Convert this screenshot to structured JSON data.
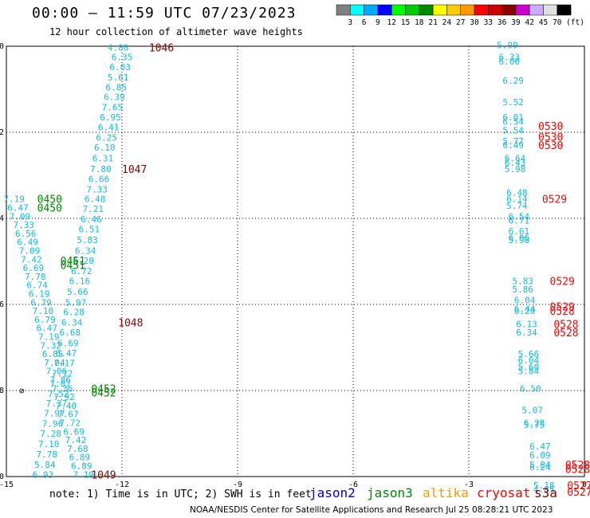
{
  "header": {
    "title": "00:00 – 11:59 UTC 07/23/2023",
    "subtitle": "12 hour collection of altimeter wave heights"
  },
  "scale": {
    "labels": [
      "3",
      "6",
      "9",
      "12",
      "15",
      "18",
      "21",
      "24",
      "27",
      "30",
      "33",
      "36",
      "39",
      "42",
      "45",
      "70"
    ],
    "unit": "(ft)",
    "colors": [
      "#808080",
      "#00ffff",
      "#00aaff",
      "#0000ff",
      "#00ff00",
      "#00cc00",
      "#008800",
      "#ffff00",
      "#ffcc00",
      "#ff9900",
      "#ff0000",
      "#cc0000",
      "#880000",
      "#cc00cc",
      "#ccaaff",
      "#e0e0e0",
      "#000000"
    ]
  },
  "map": {
    "lon_ticks": [
      "-15",
      "-12",
      "-9",
      "-6",
      "-3",
      "0"
    ],
    "lat_ticks": [
      "0",
      "-2",
      "-4",
      "-6",
      "-8",
      "-10"
    ],
    "lon_range": [
      -15,
      0
    ],
    "lat_range": [
      -10,
      0
    ],
    "marker_symbol": "⊘"
  },
  "colors": {
    "jason2": "#0000cc",
    "jason3": "#008800",
    "altika": "#ff9900",
    "cryosat": "#ff0000",
    "s3a": "#880000",
    "wave_label": "#11bbdd"
  },
  "footer": {
    "note": "note: 1) Time is in UTC; 2) SWH is in feet",
    "satellites": [
      {
        "name": "jason2",
        "color": "#0000cc"
      },
      {
        "name": "jason3",
        "color": "#008800"
      },
      {
        "name": "altika",
        "color": "#ff9900"
      },
      {
        "name": "cryosat",
        "color": "#ff0000"
      },
      {
        "name": "s3a",
        "color": "#880000"
      }
    ],
    "credit": "NOAA/NESDIS Center for Satellite Applications and Research   Jul 25 08:28:21 UTC 2023"
  },
  "tracks": [
    {
      "satellite": "s3a",
      "points": [
        [
          -12.1,
          -0.03,
          "4.86"
        ],
        [
          -12.0,
          -0.25,
          "6.35"
        ],
        [
          -12.05,
          -0.48,
          "6.03"
        ],
        [
          -12.1,
          -0.72,
          "5.61"
        ],
        [
          -12.15,
          -0.95,
          "6.85"
        ],
        [
          -12.2,
          -1.18,
          "6.39"
        ],
        [
          -12.25,
          -1.42,
          "7.65"
        ],
        [
          -12.3,
          -1.65,
          "6.95"
        ],
        [
          -12.35,
          -1.88,
          "6.41"
        ],
        [
          -12.4,
          -2.12,
          "6.25"
        ],
        [
          -12.45,
          -2.35,
          "6.10"
        ],
        [
          -12.5,
          -2.6,
          "6.31"
        ],
        [
          -12.55,
          -2.85,
          "7.80"
        ],
        [
          -12.6,
          -3.08,
          "6.66"
        ],
        [
          -12.65,
          -3.32,
          "7.33"
        ],
        [
          -12.7,
          -3.55,
          "6.48"
        ],
        [
          -12.75,
          -3.78,
          "7.21"
        ],
        [
          -12.8,
          -4.02,
          "6.46"
        ],
        [
          -12.85,
          -4.25,
          "6.51"
        ],
        [
          -12.9,
          -4.5,
          "5.83"
        ],
        [
          -12.95,
          -4.75,
          "6.34"
        ],
        [
          -13.0,
          -4.98,
          "6.20"
        ],
        [
          -13.05,
          -5.22,
          "6.72"
        ],
        [
          -13.1,
          -5.45,
          "6.16"
        ],
        [
          -13.15,
          -5.7,
          "5.66"
        ],
        [
          -13.2,
          -5.95,
          "5.97"
        ],
        [
          -13.25,
          -6.18,
          "6.28"
        ],
        [
          -13.3,
          -6.42,
          "6.34"
        ],
        [
          -13.35,
          -6.65,
          "6.68"
        ],
        [
          -13.4,
          -6.9,
          "6.69"
        ],
        [
          -13.45,
          -7.13,
          "6.47"
        ],
        [
          -13.5,
          -7.36,
          "7.17"
        ],
        [
          -13.55,
          -7.6,
          "7.12"
        ],
        [
          -13.6,
          -7.84,
          "7.07"
        ],
        [
          -13.65,
          -8.07,
          "7.52"
        ],
        [
          -13.7,
          -8.3,
          "7.37"
        ],
        [
          -13.75,
          -8.53,
          "7.97"
        ],
        [
          -13.8,
          -8.77,
          "7.96"
        ],
        [
          -13.85,
          -9.0,
          "7.28"
        ],
        [
          -13.9,
          -9.24,
          "7.10"
        ],
        [
          -13.95,
          -9.48,
          "7.78"
        ],
        [
          -14.0,
          -9.72,
          "5.84"
        ],
        [
          -14.05,
          -9.95,
          "6.93"
        ]
      ],
      "time_labels": [
        {
          "text": "1046",
          "lon": -11.3,
          "lat": -0.03
        },
        {
          "text": "1047",
          "lon": -12.0,
          "lat": -2.85
        },
        {
          "text": "1048",
          "lon": -12.1,
          "lat": -6.42
        },
        {
          "text": "1049",
          "lon": -12.8,
          "lat": -9.95
        }
      ]
    },
    {
      "satellite": "jason3",
      "points": [
        [
          -14.8,
          -3.55,
          "7.19"
        ],
        [
          -14.7,
          -3.75,
          "6.47"
        ],
        [
          -14.65,
          -3.95,
          "7.09"
        ],
        [
          -14.55,
          -4.15,
          "7.33"
        ],
        [
          -14.5,
          -4.35,
          "6.56"
        ],
        [
          -14.45,
          -4.55,
          "6.49"
        ],
        [
          -14.4,
          -4.75,
          "7.09"
        ],
        [
          -14.35,
          -4.95,
          "7.42"
        ],
        [
          -14.3,
          -5.15,
          "6.69"
        ],
        [
          -14.25,
          -5.35,
          "7.78"
        ],
        [
          -14.2,
          -5.55,
          "6.74"
        ],
        [
          -14.15,
          -5.75,
          "6.19"
        ],
        [
          -14.1,
          -5.95,
          "6.79"
        ],
        [
          -14.05,
          -6.15,
          "7.10"
        ],
        [
          -14.0,
          -6.35,
          "6.79"
        ],
        [
          -13.95,
          -6.55,
          "6.47"
        ],
        [
          -13.9,
          -6.75,
          "7.19"
        ],
        [
          -13.85,
          -6.95,
          "7.32"
        ],
        [
          -13.8,
          -7.15,
          "6.85"
        ],
        [
          -13.75,
          -7.35,
          "7.04"
        ],
        [
          -13.7,
          -7.55,
          "7.06"
        ],
        [
          -13.6,
          -7.75,
          "7.86"
        ],
        [
          -13.55,
          -7.95,
          "7.36"
        ],
        [
          -13.5,
          -8.15,
          "7.92"
        ],
        [
          -13.45,
          -8.35,
          "7.40"
        ],
        [
          -13.4,
          -8.55,
          "7.67"
        ],
        [
          -13.35,
          -8.75,
          "7.72"
        ],
        [
          -13.25,
          -8.95,
          "6.69"
        ],
        [
          -13.2,
          -9.15,
          "7.42"
        ],
        [
          -13.15,
          -9.35,
          "7.68"
        ],
        [
          -13.1,
          -9.55,
          "6.89"
        ],
        [
          -13.05,
          -9.75,
          "6.89"
        ],
        [
          -13.0,
          -9.95,
          "7.19"
        ]
      ],
      "time_labels": [
        {
          "text": "0450",
          "lon": -14.2,
          "lat": -3.55
        },
        {
          "text": "0450",
          "lon": -14.2,
          "lat": -3.75
        },
        {
          "text": "0451",
          "lon": -13.6,
          "lat": -4.98
        },
        {
          "text": "0451",
          "lon": -13.6,
          "lat": -5.08
        },
        {
          "text": "0452",
          "lon": -12.8,
          "lat": -7.95
        },
        {
          "text": "0452",
          "lon": -12.8,
          "lat": -8.05
        }
      ]
    },
    {
      "satellite": "cryosat",
      "points": [
        [
          -2.0,
          0.03,
          "5.99"
        ],
        [
          -1.95,
          -0.25,
          "6.33"
        ],
        [
          -1.95,
          -0.35,
          "6.00"
        ],
        [
          -1.85,
          -0.8,
          "6.29"
        ],
        [
          -1.85,
          -1.3,
          "5.52"
        ],
        [
          -1.85,
          -1.65,
          "6.01"
        ],
        [
          -1.85,
          -1.75,
          "6.54"
        ],
        [
          -1.85,
          -1.95,
          "5.54"
        ],
        [
          -1.85,
          -2.2,
          "5.77"
        ],
        [
          -1.85,
          -2.3,
          "6.49"
        ],
        [
          -1.8,
          -2.6,
          "6.64"
        ],
        [
          -1.8,
          -2.7,
          "6.43"
        ],
        [
          -1.8,
          -2.85,
          "5.98"
        ],
        [
          -1.75,
          -3.4,
          "6.48"
        ],
        [
          -1.75,
          -3.55,
          "6.14"
        ],
        [
          -1.75,
          -3.7,
          "5.74"
        ],
        [
          -1.7,
          -3.95,
          "6.54"
        ],
        [
          -1.7,
          -4.05,
          "6.71"
        ],
        [
          -1.7,
          -4.3,
          "6.61"
        ],
        [
          -1.7,
          -4.45,
          "6.06"
        ],
        [
          -1.7,
          -4.5,
          "5.98"
        ],
        [
          -1.6,
          -5.45,
          "5.83"
        ],
        [
          -1.6,
          -5.65,
          "5.86"
        ],
        [
          -1.55,
          -5.9,
          "6.04"
        ],
        [
          -1.55,
          -6.1,
          "6.44"
        ],
        [
          -1.55,
          -6.15,
          "6.20"
        ],
        [
          -1.5,
          -6.45,
          "6.13"
        ],
        [
          -1.5,
          -6.65,
          "6.34"
        ],
        [
          -1.45,
          -7.15,
          "5.66"
        ],
        [
          -1.45,
          -7.3,
          "6.04"
        ],
        [
          -1.45,
          -7.45,
          "5.60"
        ],
        [
          -1.45,
          -7.55,
          "5.84"
        ],
        [
          -1.4,
          -7.95,
          "6.50"
        ],
        [
          -1.35,
          -8.45,
          "5.07"
        ],
        [
          -1.3,
          -8.75,
          "6.28"
        ],
        [
          -1.3,
          -8.8,
          "5.75"
        ],
        [
          -1.15,
          -9.3,
          "6.47"
        ],
        [
          -1.15,
          -9.5,
          "6.09"
        ],
        [
          -1.15,
          -9.72,
          "5.84"
        ],
        [
          -1.15,
          -9.78,
          "6.24"
        ],
        [
          -1.05,
          -10.2,
          "5.18"
        ],
        [
          -1.05,
          -10.3,
          "4.85"
        ]
      ],
      "time_labels": [
        {
          "text": "0530",
          "lon": -1.2,
          "lat": -1.85
        },
        {
          "text": "0530",
          "lon": -1.2,
          "lat": -2.1
        },
        {
          "text": "0530",
          "lon": -1.2,
          "lat": -2.3
        },
        {
          "text": "0529",
          "lon": -1.1,
          "lat": -3.55
        },
        {
          "text": "0529",
          "lon": -0.9,
          "lat": -5.45
        },
        {
          "text": "0529",
          "lon": -0.9,
          "lat": -6.05
        },
        {
          "text": "0528",
          "lon": -0.9,
          "lat": -6.15
        },
        {
          "text": "0528",
          "lon": -0.8,
          "lat": -6.45
        },
        {
          "text": "0528",
          "lon": -0.8,
          "lat": -6.65
        },
        {
          "text": "0528",
          "lon": -0.5,
          "lat": -9.72
        },
        {
          "text": "0528",
          "lon": -0.5,
          "lat": -9.82
        },
        {
          "text": "0527",
          "lon": -0.45,
          "lat": -10.2
        },
        {
          "text": "0527",
          "lon": -0.45,
          "lat": -10.35
        }
      ]
    }
  ],
  "markers": [
    {
      "lon": -14.6,
      "lat": -8.0
    }
  ]
}
